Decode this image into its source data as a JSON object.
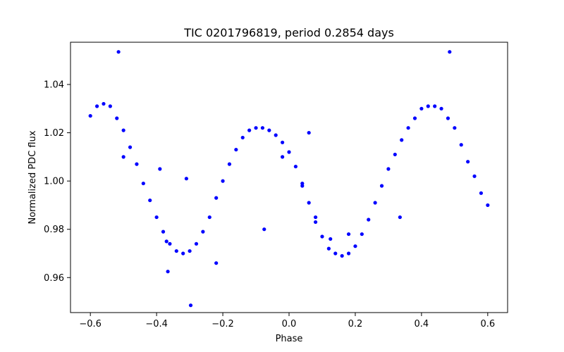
{
  "chart_data": {
    "type": "scatter",
    "title": "TIC 0201796819, period 0.2854 days",
    "xlabel": "Phase",
    "ylabel": "Normalized PDC flux",
    "xlim": [
      -0.66,
      0.66
    ],
    "ylim": [
      0.9455,
      1.0575
    ],
    "xticks": [
      -0.6,
      -0.4,
      -0.2,
      0.0,
      0.2,
      0.4,
      0.6
    ],
    "xtick_labels": [
      "−0.6",
      "−0.4",
      "−0.2",
      "0.0",
      "0.2",
      "0.4",
      "0.6"
    ],
    "yticks": [
      0.96,
      0.98,
      1.0,
      1.02,
      1.04
    ],
    "ytick_labels": [
      "0.96",
      "0.98",
      "1.00",
      "1.02",
      "1.04"
    ],
    "grid": false,
    "marker_color": "#0000ff",
    "series": [
      {
        "x": [
          -0.6,
          -0.58,
          -0.56,
          -0.54,
          -0.52,
          -0.5,
          -0.48,
          -0.46,
          -0.44,
          -0.42,
          -0.4,
          -0.38,
          -0.36,
          -0.34,
          -0.32,
          -0.3,
          -0.28,
          -0.26,
          -0.24,
          -0.22,
          -0.2,
          -0.18,
          -0.16,
          -0.14,
          -0.12,
          -0.1,
          -0.08,
          -0.06,
          -0.04,
          -0.02,
          0.0,
          0.02,
          0.04,
          0.06,
          0.08,
          0.1,
          0.12,
          0.14,
          0.16,
          0.18,
          0.2,
          0.22,
          0.24,
          0.26,
          0.28,
          0.3,
          0.32,
          0.34,
          0.36,
          0.38,
          0.4,
          0.42,
          0.44,
          0.46,
          0.48,
          0.5,
          0.52,
          0.54,
          0.56,
          0.58,
          0.6,
          -0.515,
          0.485,
          -0.297,
          -0.366,
          -0.31,
          -0.22,
          0.06,
          -0.39,
          -0.37,
          -0.075,
          0.125,
          0.18,
          0.335,
          -0.02,
          0.04,
          0.08,
          -0.5
        ],
        "y": [
          1.027,
          1.031,
          1.032,
          1.031,
          1.026,
          1.021,
          1.014,
          1.007,
          0.999,
          0.992,
          0.985,
          0.979,
          0.974,
          0.971,
          0.97,
          0.971,
          0.974,
          0.979,
          0.985,
          0.993,
          1.0,
          1.007,
          1.013,
          1.018,
          1.021,
          1.022,
          1.022,
          1.021,
          1.019,
          1.016,
          1.012,
          1.006,
          0.999,
          0.991,
          0.983,
          0.977,
          0.972,
          0.97,
          0.969,
          0.97,
          0.973,
          0.978,
          0.984,
          0.991,
          0.998,
          1.005,
          1.011,
          1.017,
          1.022,
          1.026,
          1.03,
          1.031,
          1.031,
          1.03,
          1.026,
          1.022,
          1.015,
          1.008,
          1.002,
          0.995,
          0.99,
          1.0535,
          1.0535,
          0.9485,
          0.9625,
          1.001,
          0.966,
          1.02,
          1.005,
          0.975,
          0.98,
          0.976,
          0.978,
          0.985,
          1.01,
          0.998,
          0.985,
          1.01
        ]
      }
    ]
  }
}
